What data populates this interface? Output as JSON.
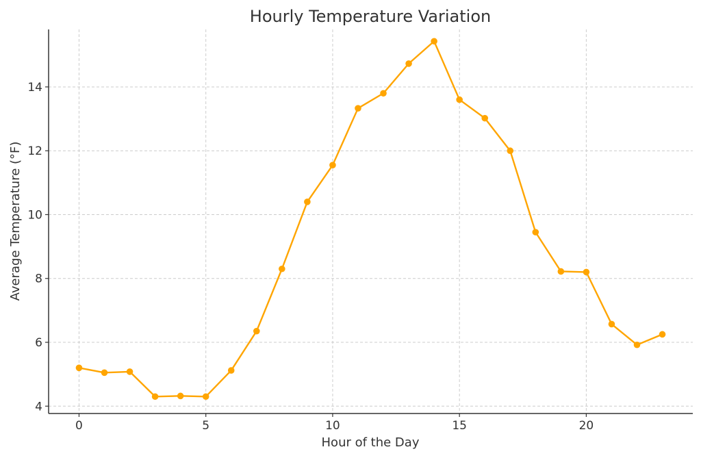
{
  "chart_data": {
    "type": "line",
    "title": "Hourly Temperature Variation",
    "xlabel": "Hour of the Day",
    "ylabel": "Average Temperature (°F)",
    "xlim": [
      -1.2,
      24.2
    ],
    "ylim": [
      3.77,
      15.8
    ],
    "xticks": [
      0,
      5,
      10,
      15,
      20
    ],
    "yticks": [
      4,
      6,
      8,
      10,
      12,
      14
    ],
    "grid": true,
    "legend": "none",
    "series": [
      {
        "color": "#FFA500",
        "marker": "circle",
        "x": [
          0,
          1,
          2,
          3,
          4,
          5,
          6,
          7,
          8,
          9,
          10,
          11,
          12,
          13,
          14,
          15,
          16,
          17,
          18,
          19,
          20,
          21,
          22,
          23
        ],
        "y": [
          5.2,
          5.05,
          5.08,
          4.3,
          4.32,
          4.3,
          5.12,
          6.35,
          8.3,
          10.4,
          11.55,
          13.33,
          13.8,
          14.73,
          15.43,
          13.6,
          13.02,
          12.0,
          9.45,
          8.22,
          8.2,
          6.57,
          5.92,
          6.25
        ]
      }
    ]
  }
}
